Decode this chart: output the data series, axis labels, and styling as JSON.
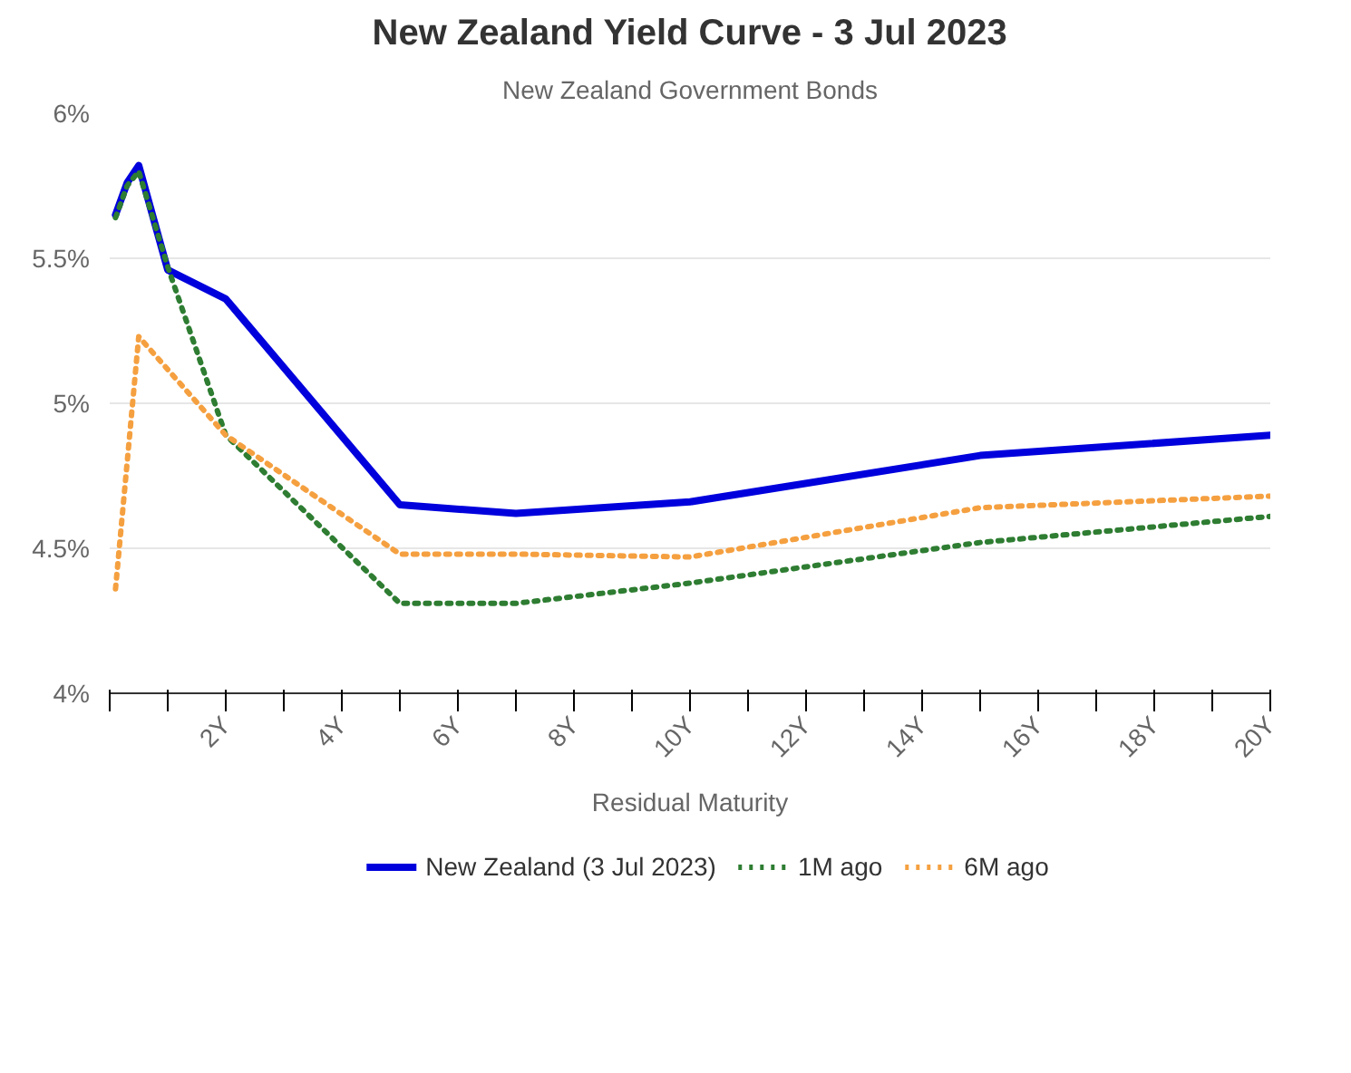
{
  "chart_data": {
    "type": "line",
    "title": "New Zealand Yield Curve - 3 Jul 2023",
    "subtitle": "New Zealand Government Bonds",
    "xlabel": "Residual Maturity",
    "x": [
      0.1,
      0.3,
      0.5,
      1,
      2,
      5,
      7,
      10,
      15,
      20
    ],
    "series": [
      {
        "name": "New Zealand (3 Jul 2023)",
        "color": "#0000dd",
        "line_style": "solid",
        "values": [
          5.65,
          5.76,
          5.82,
          5.46,
          5.36,
          4.65,
          4.62,
          4.66,
          4.82,
          4.89
        ]
      },
      {
        "name": "1M ago",
        "color": "#2e7d32",
        "line_style": "dotted",
        "values": [
          5.64,
          5.75,
          5.8,
          5.47,
          4.89,
          4.31,
          4.31,
          4.38,
          4.52,
          4.61
        ]
      },
      {
        "name": "6M ago",
        "color": "#f5a040",
        "line_style": "dotted",
        "x": [
          0.1,
          0.5,
          2,
          5,
          7,
          10,
          15,
          20
        ],
        "values": [
          4.36,
          5.23,
          4.89,
          4.48,
          4.48,
          4.47,
          4.64,
          4.68
        ]
      }
    ],
    "xlim": [
      0,
      20
    ],
    "ylim": [
      4,
      6
    ],
    "xticks": [
      {
        "value": 0,
        "label": null
      },
      {
        "value": 1,
        "label": null
      },
      {
        "value": 2,
        "label": "2Y"
      },
      {
        "value": 3,
        "label": null
      },
      {
        "value": 4,
        "label": "4Y"
      },
      {
        "value": 5,
        "label": null
      },
      {
        "value": 6,
        "label": "6Y"
      },
      {
        "value": 7,
        "label": null
      },
      {
        "value": 8,
        "label": "8Y"
      },
      {
        "value": 9,
        "label": null
      },
      {
        "value": 10,
        "label": "10Y"
      },
      {
        "value": 11,
        "label": null
      },
      {
        "value": 12,
        "label": "12Y"
      },
      {
        "value": 13,
        "label": null
      },
      {
        "value": 14,
        "label": "14Y"
      },
      {
        "value": 15,
        "label": null
      },
      {
        "value": 16,
        "label": "16Y"
      },
      {
        "value": 17,
        "label": null
      },
      {
        "value": 18,
        "label": "18Y"
      },
      {
        "value": 19,
        "label": null
      },
      {
        "value": 20,
        "label": "20Y"
      }
    ],
    "yticks": [
      {
        "value": 4,
        "label": "4%"
      },
      {
        "value": 4.5,
        "label": "4.5%"
      },
      {
        "value": 5,
        "label": "5%"
      },
      {
        "value": 5.5,
        "label": "5.5%"
      },
      {
        "value": 6,
        "label": "6%"
      }
    ],
    "grid": "y",
    "legend": "bottom",
    "marker": "none"
  }
}
